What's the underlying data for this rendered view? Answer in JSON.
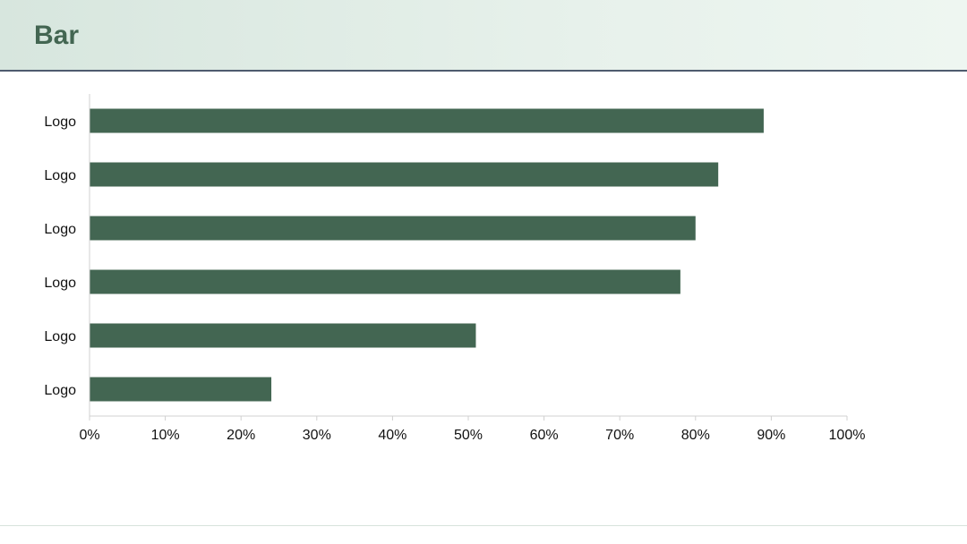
{
  "slide": {
    "title": "Bar"
  },
  "colors": {
    "bar": "#436652",
    "axis": "#d0d0d0",
    "title": "#436652"
  },
  "chart_data": {
    "type": "bar",
    "orientation": "horizontal",
    "categories": [
      "Logo",
      "Logo",
      "Logo",
      "Logo",
      "Logo",
      "Logo"
    ],
    "values": [
      89,
      83,
      80,
      78,
      51,
      24
    ],
    "xlim": [
      0,
      100
    ],
    "xticks": [
      "0%",
      "10%",
      "20%",
      "30%",
      "40%",
      "50%",
      "60%",
      "70%",
      "80%",
      "90%",
      "100%"
    ],
    "grid": false,
    "legend": "none"
  }
}
